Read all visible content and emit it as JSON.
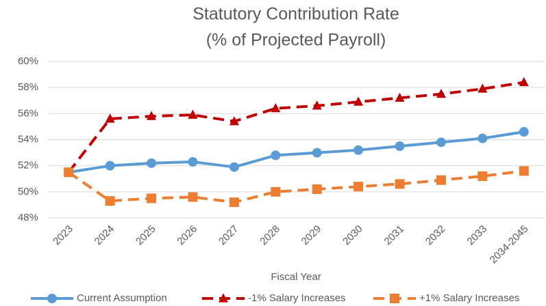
{
  "chart_data": {
    "type": "line",
    "title": "Statutory Contribution Rate",
    "subtitle": "(% of Projected Payroll)",
    "x_label": "Fiscal Year",
    "categories": [
      "2023",
      "2024",
      "2025",
      "2026",
      "2027",
      "2028",
      "2029",
      "2030",
      "2031",
      "2032",
      "2033",
      "2034-2045"
    ],
    "series": [
      {
        "name": "Current Assumption",
        "color": "#5b9bd5",
        "dash": false,
        "marker": "circle",
        "values": [
          51.5,
          52.0,
          52.2,
          52.3,
          51.9,
          52.8,
          53.0,
          53.2,
          53.5,
          53.8,
          54.1,
          54.6
        ]
      },
      {
        "name": "-1% Salary Increases",
        "color": "#c00000",
        "dash": true,
        "marker": "triangle",
        "values": [
          51.5,
          55.6,
          55.8,
          55.9,
          55.4,
          56.4,
          56.6,
          56.9,
          57.2,
          57.5,
          57.9,
          58.4
        ]
      },
      {
        "name": "+1% Salary Increases",
        "color": "#ed7d31",
        "dash": true,
        "marker": "square",
        "values": [
          51.5,
          49.3,
          49.5,
          49.6,
          49.2,
          50.0,
          50.2,
          50.4,
          50.6,
          50.9,
          51.2,
          51.6
        ]
      }
    ],
    "ylim": [
      48,
      60
    ],
    "yticks": [
      {
        "value": 48,
        "label": "48%"
      },
      {
        "value": 50,
        "label": "50%"
      },
      {
        "value": 52,
        "label": "52%"
      },
      {
        "value": 54,
        "label": "54%"
      },
      {
        "value": 56,
        "label": "56%"
      },
      {
        "value": 58,
        "label": "58%"
      },
      {
        "value": 60,
        "label": "60%"
      }
    ],
    "grid": true,
    "legend": "bottom"
  }
}
